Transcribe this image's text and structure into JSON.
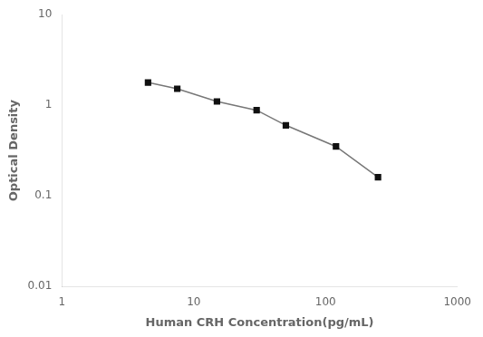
{
  "chart_data": {
    "type": "line",
    "x": [
      4.5,
      7.5,
      15,
      30,
      50,
      120,
      250
    ],
    "values": [
      1.78,
      1.52,
      1.1,
      0.88,
      0.6,
      0.35,
      0.16
    ],
    "color": "#777777",
    "colors": [
      "#111111",
      "#111111",
      "#111111",
      "#111111",
      "#111111",
      "#111111",
      "#111111"
    ],
    "marker": "square",
    "xlabel": "Human CRH Concentration(pg/mL)",
    "ylabel": "Optical Density",
    "xlim": [
      1,
      1000
    ],
    "ylim": [
      0.01,
      10
    ],
    "xticks": [
      1,
      10,
      100,
      1000
    ],
    "yticks": [
      0.01,
      0.1,
      1,
      10
    ],
    "log": true,
    "grid": false
  }
}
